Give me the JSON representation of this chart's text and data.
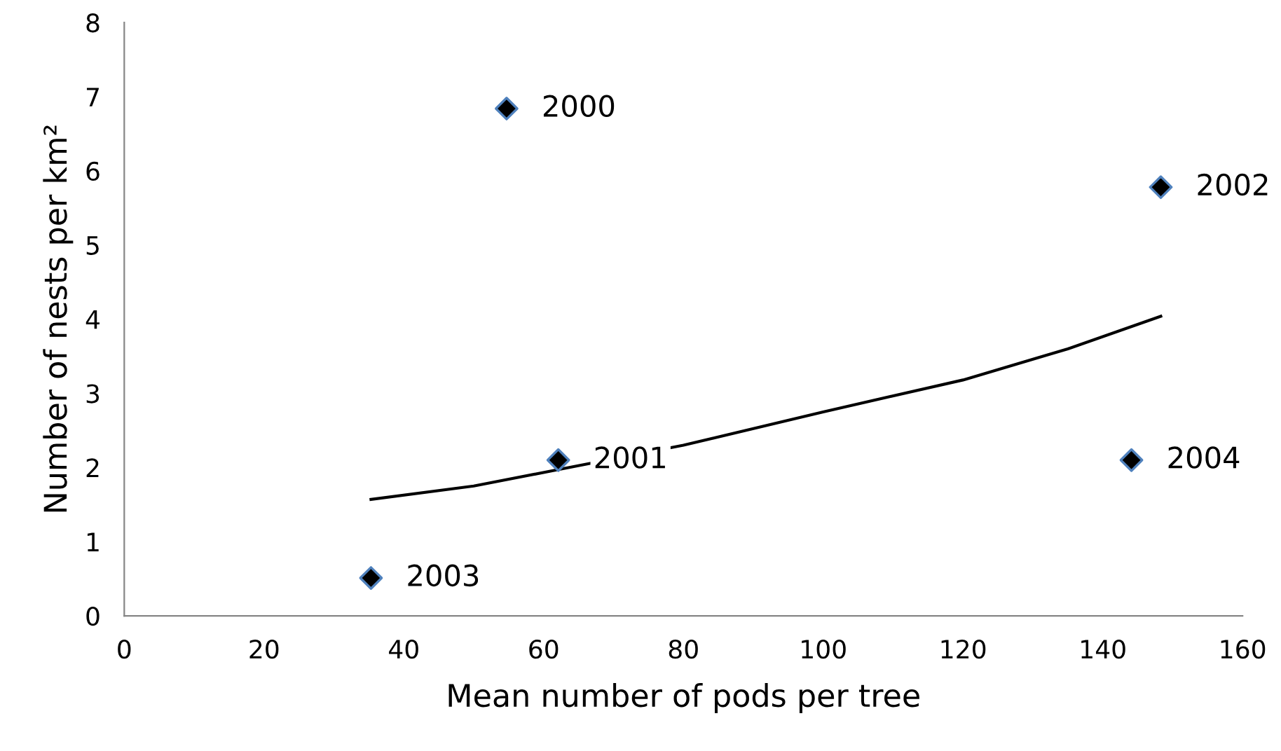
{
  "chart_data": {
    "type": "scatter",
    "xlabel": "Mean number of pods per tree",
    "ylabel": "Number of nests per km²",
    "xlim": [
      0,
      160
    ],
    "xticks": [
      0,
      20,
      40,
      60,
      80,
      100,
      120,
      140,
      160
    ],
    "ylim": [
      0,
      8
    ],
    "yticks": [
      0,
      1,
      2,
      3,
      4,
      5,
      6,
      7,
      8
    ],
    "grid": false,
    "marker": "diamond",
    "series": [
      {
        "color": "#000000",
        "x": [
          54.7,
          62.1,
          148.3,
          35.3,
          144.1
        ],
        "values": [
          6.84,
          2.1,
          5.78,
          0.51,
          2.1
        ]
      },
      {
        "type": "line",
        "color": "#000000",
        "marker": "none",
        "x": [
          35.3,
          50,
          62,
          80,
          100,
          120,
          135,
          148.3
        ],
        "values": [
          1.57,
          1.75,
          1.97,
          2.3,
          2.75,
          3.18,
          3.6,
          4.04
        ]
      }
    ],
    "annotations": [
      {
        "text": "2000",
        "x": 54.7,
        "y": 6.84
      },
      {
        "text": "2001",
        "x": 62.1,
        "y": 2.1
      },
      {
        "text": "2002",
        "x": 148.3,
        "y": 5.78
      },
      {
        "text": "2003",
        "x": 35.3,
        "y": 0.51
      },
      {
        "text": "2004",
        "x": 144.1,
        "y": 2.1
      }
    ]
  }
}
